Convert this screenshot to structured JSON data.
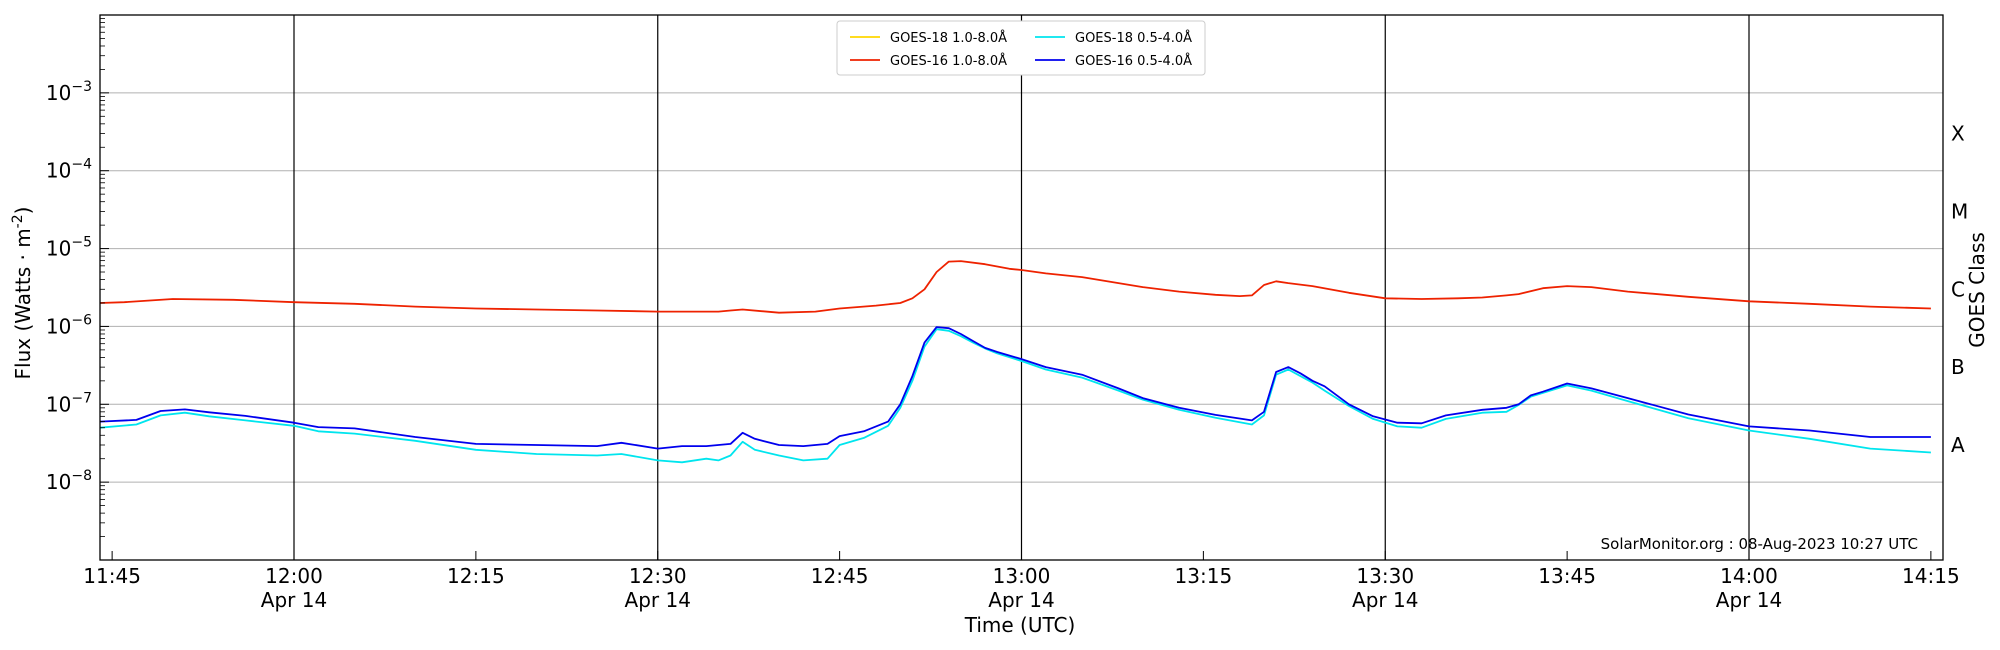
{
  "chart_data": {
    "type": "line",
    "title": "",
    "xlabel": "Time (UTC)",
    "ylabel": "Flux (Watts · m",
    "ylabel_sup": "-2",
    "ylabel_close": ")",
    "y2label": "GOES Class",
    "yscale": "log",
    "xlim": [
      "11:44",
      "14:16"
    ],
    "ylim": [
      1e-09,
      0.01
    ],
    "grid": "horizontal at decades",
    "legend_position": "top-center",
    "watermark": "SolarMonitor.org : 08-Aug-2023 10:27 UTC",
    "x_ticks": [
      {
        "label": "11:45",
        "sub": "",
        "t": "11:45",
        "major": false
      },
      {
        "label": "12:00",
        "sub": "Apr 14",
        "t": "12:00",
        "major": true
      },
      {
        "label": "12:15",
        "sub": "",
        "t": "12:15",
        "major": false
      },
      {
        "label": "12:30",
        "sub": "Apr 14",
        "t": "12:30",
        "major": true
      },
      {
        "label": "12:45",
        "sub": "",
        "t": "12:45",
        "major": false
      },
      {
        "label": "13:00",
        "sub": "Apr 14",
        "t": "13:00",
        "major": true
      },
      {
        "label": "13:15",
        "sub": "",
        "t": "13:15",
        "major": false
      },
      {
        "label": "13:30",
        "sub": "Apr 14",
        "t": "13:30",
        "major": true
      },
      {
        "label": "13:45",
        "sub": "",
        "t": "13:45",
        "major": false
      },
      {
        "label": "14:00",
        "sub": "Apr 14",
        "t": "14:00",
        "major": true
      },
      {
        "label": "14:15",
        "sub": "",
        "t": "14:15",
        "major": false
      }
    ],
    "y_ticks": [
      {
        "base": "10",
        "exp": "−8",
        "value": 1e-08
      },
      {
        "base": "10",
        "exp": "−7",
        "value": 1e-07
      },
      {
        "base": "10",
        "exp": "−6",
        "value": 1e-06
      },
      {
        "base": "10",
        "exp": "−5",
        "value": 1e-05
      },
      {
        "base": "10",
        "exp": "−4",
        "value": 0.0001
      },
      {
        "base": "10",
        "exp": "−3",
        "value": 0.001
      }
    ],
    "goes_classes": [
      {
        "label": "A",
        "value": 3e-08
      },
      {
        "label": "B",
        "value": 3e-07
      },
      {
        "label": "C",
        "value": 3e-06
      },
      {
        "label": "M",
        "value": 3e-05
      },
      {
        "label": "X",
        "value": 0.0003
      }
    ],
    "series": [
      {
        "name": "GOES-18 1.0-8.0Å",
        "color": "#ffd700",
        "x": [],
        "values": []
      },
      {
        "name": "GOES-18 0.5-4.0Å",
        "color": "#00e5ee",
        "x": [
          "11:44",
          "11:47",
          "11:49",
          "11:51",
          "11:53",
          "11:56",
          "12:00",
          "12:02",
          "12:05",
          "12:10",
          "12:15",
          "12:20",
          "12:25",
          "12:27",
          "12:30",
          "12:32",
          "12:34",
          "12:35",
          "12:36",
          "12:37",
          "12:38",
          "12:40",
          "12:42",
          "12:44",
          "12:45",
          "12:47",
          "12:49",
          "12:50",
          "12:51",
          "12:52",
          "12:53",
          "12:54",
          "12:55",
          "12:56",
          "12:57",
          "12:58",
          "13:00",
          "13:02",
          "13:05",
          "13:08",
          "13:10",
          "13:13",
          "13:16",
          "13:19",
          "13:20",
          "13:21",
          "13:22",
          "13:23",
          "13:24",
          "13:25",
          "13:27",
          "13:29",
          "13:31",
          "13:33",
          "13:35",
          "13:38",
          "13:40",
          "13:41",
          "13:42",
          "13:43",
          "13:45",
          "13:47",
          "13:50",
          "13:55",
          "14:00",
          "14:05",
          "14:10",
          "14:15"
        ],
        "values": [
          5e-08,
          5.5e-08,
          7.2e-08,
          7.8e-08,
          7e-08,
          6.2e-08,
          5.3e-08,
          4.5e-08,
          4.2e-08,
          3.4e-08,
          2.6e-08,
          2.3e-08,
          2.2e-08,
          2.3e-08,
          1.9e-08,
          1.8e-08,
          2e-08,
          1.9e-08,
          2.2e-08,
          3.3e-08,
          2.6e-08,
          2.2e-08,
          1.9e-08,
          2e-08,
          3e-08,
          3.7e-08,
          5.3e-08,
          9e-08,
          2e-07,
          5.5e-07,
          9.2e-07,
          8.8e-07,
          7.5e-07,
          6.2e-07,
          5.2e-07,
          4.5e-07,
          3.6e-07,
          2.8e-07,
          2.2e-07,
          1.5e-07,
          1.15e-07,
          8.5e-08,
          6.7e-08,
          5.5e-08,
          7.2e-08,
          2.4e-07,
          2.8e-07,
          2.3e-07,
          1.9e-07,
          1.5e-07,
          9.5e-08,
          6.5e-08,
          5.2e-08,
          5e-08,
          6.5e-08,
          7.8e-08,
          8e-08,
          9.8e-08,
          1.25e-07,
          1.4e-07,
          1.75e-07,
          1.5e-07,
          1.1e-07,
          6.6e-08,
          4.6e-08,
          3.6e-08,
          2.7e-08,
          2.4e-08
        ]
      },
      {
        "name": "GOES-16 1.0-8.0Å",
        "color": "#ee2200",
        "x": [
          "11:44",
          "11:46",
          "11:50",
          "11:55",
          "12:00",
          "12:05",
          "12:10",
          "12:15",
          "12:20",
          "12:25",
          "12:30",
          "12:35",
          "12:36",
          "12:37",
          "12:40",
          "12:43",
          "12:45",
          "12:48",
          "12:50",
          "12:51",
          "12:52",
          "12:53",
          "12:54",
          "12:55",
          "12:57",
          "12:59",
          "13:00",
          "13:02",
          "13:05",
          "13:08",
          "13:10",
          "13:13",
          "13:16",
          "13:18",
          "13:19",
          "13:20",
          "13:21",
          "13:22",
          "13:24",
          "13:27",
          "13:30",
          "13:33",
          "13:36",
          "13:38",
          "13:40",
          "13:41",
          "13:43",
          "13:45",
          "13:47",
          "13:50",
          "13:55",
          "14:00",
          "14:05",
          "14:10",
          "14:15"
        ],
        "values": [
          2e-06,
          2.05e-06,
          2.25e-06,
          2.2e-06,
          2.05e-06,
          1.95e-06,
          1.8e-06,
          1.7e-06,
          1.65e-06,
          1.6e-06,
          1.55e-06,
          1.55e-06,
          1.6e-06,
          1.65e-06,
          1.5e-06,
          1.55e-06,
          1.7e-06,
          1.85e-06,
          2e-06,
          2.3e-06,
          3e-06,
          5e-06,
          6.8e-06,
          6.9e-06,
          6.3e-06,
          5.5e-06,
          5.3e-06,
          4.8e-06,
          4.3e-06,
          3.6e-06,
          3.2e-06,
          2.8e-06,
          2.55e-06,
          2.45e-06,
          2.5e-06,
          3.4e-06,
          3.8e-06,
          3.6e-06,
          3.3e-06,
          2.7e-06,
          2.3e-06,
          2.25e-06,
          2.3e-06,
          2.35e-06,
          2.5e-06,
          2.6e-06,
          3.1e-06,
          3.3e-06,
          3.2e-06,
          2.8e-06,
          2.4e-06,
          2.1e-06,
          1.95e-06,
          1.8e-06,
          1.7e-06
        ]
      },
      {
        "name": "GOES-16 0.5-4.0Å",
        "color": "#0000ee",
        "x": [
          "11:44",
          "11:47",
          "11:49",
          "11:51",
          "11:53",
          "11:56",
          "12:00",
          "12:02",
          "12:05",
          "12:10",
          "12:15",
          "12:20",
          "12:25",
          "12:27",
          "12:30",
          "12:32",
          "12:34",
          "12:35",
          "12:36",
          "12:37",
          "12:38",
          "12:40",
          "12:42",
          "12:44",
          "12:45",
          "12:47",
          "12:49",
          "12:50",
          "12:51",
          "12:52",
          "12:53",
          "12:54",
          "12:55",
          "12:56",
          "12:57",
          "12:58",
          "13:00",
          "13:02",
          "13:05",
          "13:08",
          "13:10",
          "13:13",
          "13:16",
          "13:19",
          "13:20",
          "13:21",
          "13:22",
          "13:23",
          "13:24",
          "13:25",
          "13:27",
          "13:29",
          "13:31",
          "13:33",
          "13:35",
          "13:38",
          "13:40",
          "13:41",
          "13:42",
          "13:43",
          "13:45",
          "13:47",
          "13:50",
          "13:55",
          "14:00",
          "14:05",
          "14:10",
          "14:15"
        ],
        "values": [
          6e-08,
          6.3e-08,
          8.2e-08,
          8.6e-08,
          7.9e-08,
          7.1e-08,
          5.8e-08,
          5.1e-08,
          4.9e-08,
          3.8e-08,
          3.1e-08,
          3e-08,
          2.9e-08,
          3.2e-08,
          2.7e-08,
          2.9e-08,
          2.9e-08,
          3e-08,
          3.1e-08,
          4.3e-08,
          3.6e-08,
          3e-08,
          2.9e-08,
          3.1e-08,
          3.9e-08,
          4.5e-08,
          6e-08,
          1e-07,
          2.3e-07,
          6.2e-07,
          9.8e-07,
          9.5e-07,
          8e-07,
          6.5e-07,
          5.3e-07,
          4.7e-07,
          3.8e-07,
          3e-07,
          2.4e-07,
          1.6e-07,
          1.2e-07,
          9e-08,
          7.3e-08,
          6.2e-08,
          8e-08,
          2.6e-07,
          3e-07,
          2.5e-07,
          2e-07,
          1.7e-07,
          1e-07,
          7e-08,
          5.8e-08,
          5.7e-08,
          7.2e-08,
          8.5e-08,
          9e-08,
          1e-07,
          1.3e-07,
          1.45e-07,
          1.85e-07,
          1.6e-07,
          1.2e-07,
          7.4e-08,
          5.2e-08,
          4.6e-08,
          3.8e-08,
          3.8e-08
        ]
      }
    ]
  }
}
